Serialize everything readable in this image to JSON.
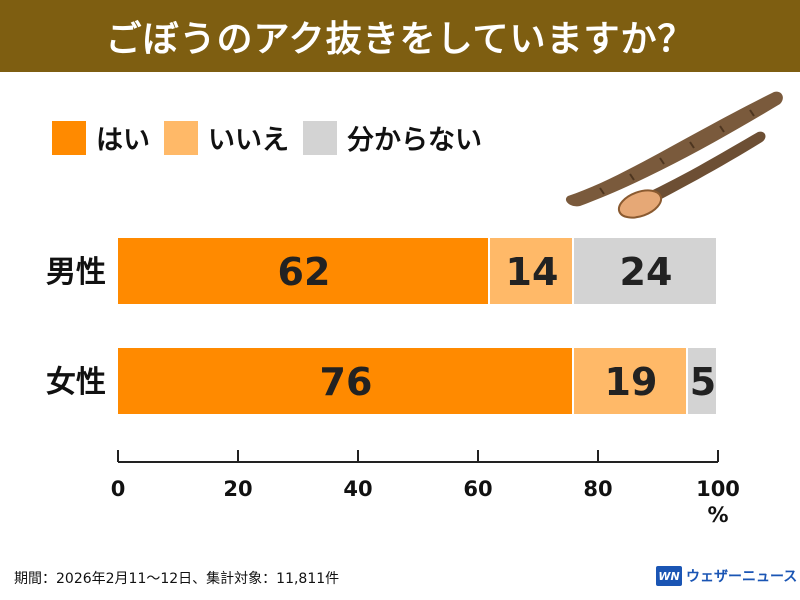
{
  "title": "ごぼうのアク抜きをしていますか？",
  "legend": [
    {
      "label": "はい",
      "color": "#ff8a00"
    },
    {
      "label": "いいえ",
      "color": "#ffb968"
    },
    {
      "label": "分からない",
      "color": "#d3d3d3"
    }
  ],
  "footnote": "期間：2026年2月11〜12日、集計対象：11,811件",
  "brand": {
    "logo": "WN",
    "name": "ウェザーニュース"
  },
  "illustration": "burdock-root",
  "chart_data": {
    "type": "bar",
    "orientation": "horizontal",
    "stacked": true,
    "categories": [
      "男性",
      "女性"
    ],
    "series": [
      {
        "name": "はい",
        "values": [
          62,
          76
        ],
        "color": "#ff8a00"
      },
      {
        "name": "いいえ",
        "values": [
          14,
          19
        ],
        "color": "#ffb968"
      },
      {
        "name": "分からない",
        "values": [
          24,
          5
        ],
        "color": "#d3d3d3"
      }
    ],
    "xlim": [
      0,
      100
    ],
    "xticks": [
      0,
      20,
      40,
      60,
      80,
      100
    ],
    "xunit": "%",
    "legend_position": "top-left",
    "grid": false
  }
}
